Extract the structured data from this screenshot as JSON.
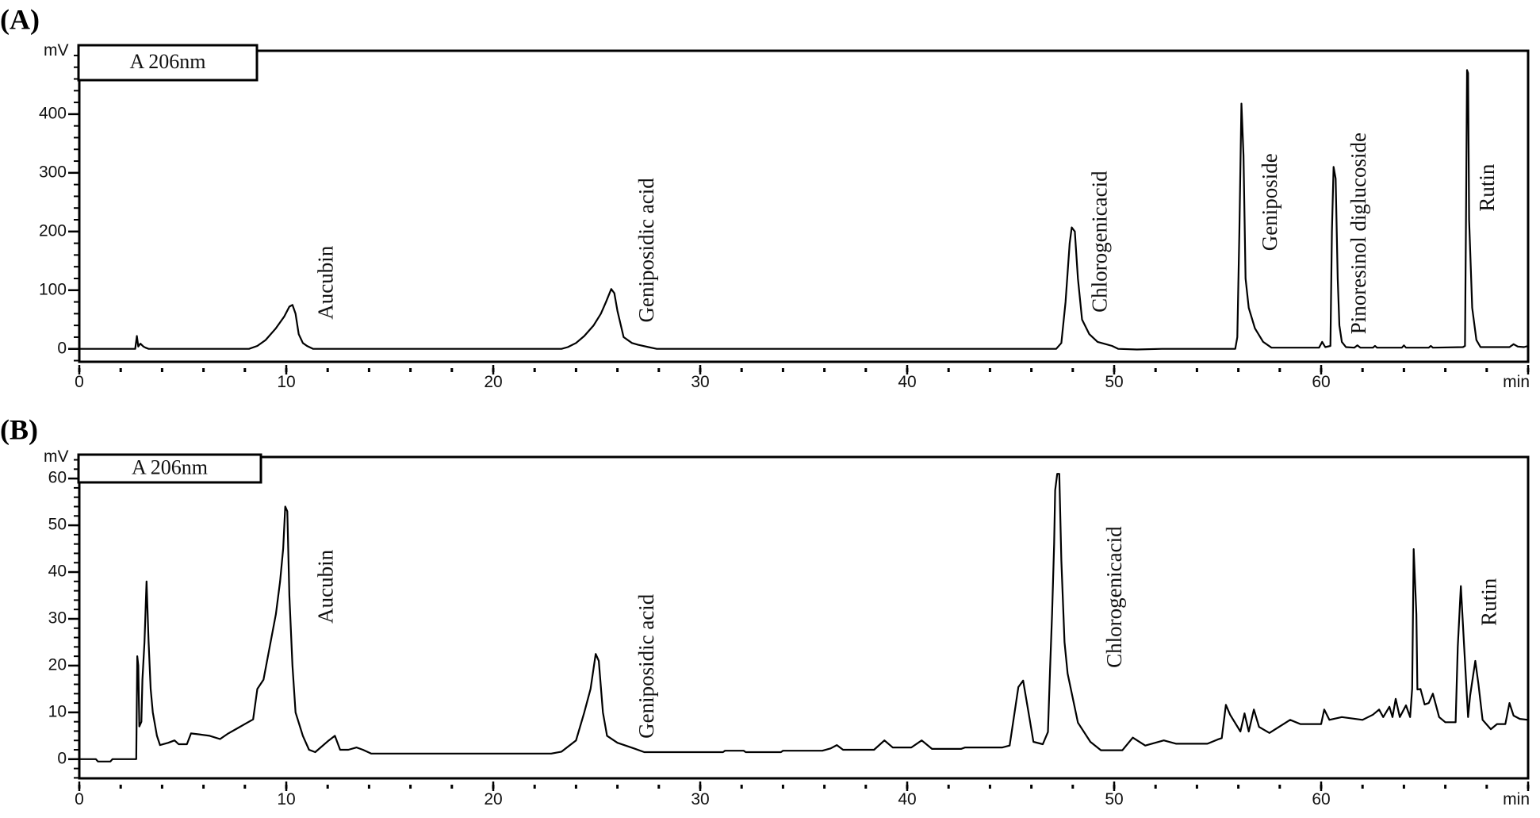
{
  "chart_data": [
    {
      "type": "line",
      "panel_label": "(A)",
      "legend": "A 206nm",
      "ylabel": "mV",
      "xlabel": "min",
      "xlim": [
        0,
        70
      ],
      "ylim": [
        -22,
        508
      ],
      "x_major_ticks": [
        0,
        10,
        20,
        30,
        40,
        50,
        60
      ],
      "x_tick_labels": [
        "0",
        "10",
        "20",
        "30",
        "40",
        "50",
        "60"
      ],
      "x_minor_step": 2,
      "y_major_ticks": [
        0,
        100,
        200,
        300,
        400
      ],
      "y_tick_labels": [
        "0",
        "100",
        "200",
        "300",
        "400"
      ],
      "y_minor_step": 20,
      "annotations": [
        {
          "text": "Aucubin",
          "t": 11.9,
          "mV": 50
        },
        {
          "text": "Geniposidic acid",
          "t": 27.4,
          "mV": 45
        },
        {
          "text": "Chlorogenicacid",
          "t": 49.3,
          "mV": 62
        },
        {
          "text": "Geniposide",
          "t": 57.5,
          "mV": 167
        },
        {
          "text": "Pinoresinol diglucoside",
          "t": 61.8,
          "mV": 25
        },
        {
          "text": "Rutin",
          "t": 68.0,
          "mV": 234
        }
      ],
      "points": [
        [
          0,
          0
        ],
        [
          2.7,
          0
        ],
        [
          2.78,
          22
        ],
        [
          2.85,
          4
        ],
        [
          2.95,
          9
        ],
        [
          3.1,
          4
        ],
        [
          3.2,
          2
        ],
        [
          3.35,
          0
        ],
        [
          8.2,
          0
        ],
        [
          8.6,
          5
        ],
        [
          9.0,
          15
        ],
        [
          9.5,
          35
        ],
        [
          9.9,
          55
        ],
        [
          10.15,
          72
        ],
        [
          10.3,
          75
        ],
        [
          10.45,
          60
        ],
        [
          10.6,
          25
        ],
        [
          10.8,
          10
        ],
        [
          11.0,
          5
        ],
        [
          11.3,
          0
        ],
        [
          23.3,
          0
        ],
        [
          23.6,
          3
        ],
        [
          24.0,
          10
        ],
        [
          24.4,
          22
        ],
        [
          24.85,
          40
        ],
        [
          25.2,
          60
        ],
        [
          25.45,
          80
        ],
        [
          25.7,
          102
        ],
        [
          25.85,
          95
        ],
        [
          26.0,
          65
        ],
        [
          26.3,
          20
        ],
        [
          26.7,
          10
        ],
        [
          27.0,
          7
        ],
        [
          27.5,
          3
        ],
        [
          27.9,
          0
        ],
        [
          47.2,
          0
        ],
        [
          47.45,
          10
        ],
        [
          47.65,
          80
        ],
        [
          47.85,
          180
        ],
        [
          47.95,
          207
        ],
        [
          48.1,
          200
        ],
        [
          48.25,
          120
        ],
        [
          48.45,
          50
        ],
        [
          48.8,
          25
        ],
        [
          49.2,
          12
        ],
        [
          49.6,
          8
        ],
        [
          49.9,
          5
        ],
        [
          50.2,
          0
        ],
        [
          51.1,
          -1
        ],
        [
          52.3,
          0
        ],
        [
          55.85,
          0
        ],
        [
          55.95,
          20
        ],
        [
          56.05,
          200
        ],
        [
          56.15,
          418
        ],
        [
          56.25,
          330
        ],
        [
          56.35,
          120
        ],
        [
          56.5,
          70
        ],
        [
          56.8,
          35
        ],
        [
          57.2,
          12
        ],
        [
          57.6,
          2
        ],
        [
          59.9,
          2
        ],
        [
          60.05,
          12
        ],
        [
          60.2,
          3
        ],
        [
          60.45,
          5
        ],
        [
          60.52,
          200
        ],
        [
          60.6,
          310
        ],
        [
          60.7,
          290
        ],
        [
          60.8,
          120
        ],
        [
          60.88,
          40
        ],
        [
          61.0,
          12
        ],
        [
          61.2,
          3
        ],
        [
          61.6,
          2
        ],
        [
          61.75,
          6
        ],
        [
          61.9,
          2
        ],
        [
          62.5,
          2
        ],
        [
          62.6,
          5
        ],
        [
          62.7,
          2
        ],
        [
          63.9,
          2
        ],
        [
          64.0,
          6
        ],
        [
          64.1,
          2
        ],
        [
          65.2,
          2
        ],
        [
          65.3,
          5
        ],
        [
          65.4,
          2
        ],
        [
          66.85,
          3
        ],
        [
          66.95,
          5
        ],
        [
          67.0,
          225
        ],
        [
          67.05,
          475
        ],
        [
          67.1,
          470
        ],
        [
          67.15,
          220
        ],
        [
          67.3,
          70
        ],
        [
          67.5,
          15
        ],
        [
          67.7,
          3
        ],
        [
          69.1,
          3
        ],
        [
          69.3,
          8
        ],
        [
          69.5,
          4
        ],
        [
          69.8,
          3
        ],
        [
          70.0,
          5
        ]
      ]
    },
    {
      "type": "line",
      "panel_label": "(B)",
      "legend": "A 206nm",
      "ylabel": "mV",
      "xlabel": "min",
      "xlim": [
        0,
        70
      ],
      "ylim": [
        -4.1,
        64.6
      ],
      "x_major_ticks": [
        0,
        10,
        20,
        30,
        40,
        50,
        60
      ],
      "x_tick_labels": [
        "0",
        "10",
        "20",
        "30",
        "40",
        "50",
        "60"
      ],
      "x_minor_step": 2,
      "y_major_ticks": [
        0,
        10,
        20,
        30,
        40,
        50,
        60
      ],
      "y_tick_labels": [
        "0",
        "10",
        "20",
        "30",
        "40",
        "50",
        "60"
      ],
      "y_minor_step": 2,
      "annotations": [
        {
          "text": "Aucubin",
          "t": 11.9,
          "mV": 29
        },
        {
          "text": "Geniposidic acid",
          "t": 27.4,
          "mV": 4.4
        },
        {
          "text": "Chlorogenicacid",
          "t": 50.0,
          "mV": 19.5
        },
        {
          "text": "Rutin",
          "t": 68.1,
          "mV": 28.5
        }
      ],
      "points": [
        [
          0,
          0
        ],
        [
          0.8,
          0
        ],
        [
          0.9,
          -0.5
        ],
        [
          1.5,
          -0.5
        ],
        [
          1.6,
          0
        ],
        [
          2.75,
          0
        ],
        [
          2.8,
          22
        ],
        [
          2.85,
          20
        ],
        [
          2.9,
          7
        ],
        [
          3.0,
          8
        ],
        [
          3.05,
          17
        ],
        [
          3.15,
          25
        ],
        [
          3.25,
          38
        ],
        [
          3.35,
          25
        ],
        [
          3.45,
          15
        ],
        [
          3.55,
          10
        ],
        [
          3.75,
          5
        ],
        [
          3.9,
          3
        ],
        [
          4.3,
          3.5
        ],
        [
          4.6,
          4
        ],
        [
          4.8,
          3.2
        ],
        [
          5.2,
          3.2
        ],
        [
          5.4,
          5.5
        ],
        [
          5.8,
          5.3
        ],
        [
          6.3,
          5
        ],
        [
          6.8,
          4.3
        ],
        [
          7.2,
          5.5
        ],
        [
          7.6,
          6.5
        ],
        [
          8.0,
          7.5
        ],
        [
          8.4,
          8.5
        ],
        [
          8.6,
          15
        ],
        [
          8.9,
          17
        ],
        [
          9.2,
          24
        ],
        [
          9.5,
          31
        ],
        [
          9.7,
          38
        ],
        [
          9.85,
          45
        ],
        [
          9.95,
          54
        ],
        [
          10.05,
          53
        ],
        [
          10.15,
          35
        ],
        [
          10.3,
          20
        ],
        [
          10.45,
          10
        ],
        [
          10.8,
          5
        ],
        [
          11.1,
          2
        ],
        [
          11.4,
          1.5
        ],
        [
          12.0,
          3.8
        ],
        [
          12.35,
          5
        ],
        [
          12.6,
          2
        ],
        [
          13.0,
          2
        ],
        [
          13.4,
          2.5
        ],
        [
          13.7,
          2
        ],
        [
          14.1,
          1.2
        ],
        [
          22.8,
          1.2
        ],
        [
          23.3,
          1.6
        ],
        [
          24.0,
          4
        ],
        [
          24.4,
          10
        ],
        [
          24.7,
          15
        ],
        [
          24.95,
          22.5
        ],
        [
          25.1,
          21
        ],
        [
          25.3,
          10
        ],
        [
          25.5,
          5
        ],
        [
          26.0,
          3.5
        ],
        [
          26.8,
          2.3
        ],
        [
          27.3,
          1.5
        ],
        [
          31.1,
          1.5
        ],
        [
          31.2,
          1.8
        ],
        [
          32.1,
          1.8
        ],
        [
          32.2,
          1.5
        ],
        [
          33.9,
          1.5
        ],
        [
          34.0,
          1.8
        ],
        [
          35.9,
          1.8
        ],
        [
          36.3,
          2.3
        ],
        [
          36.6,
          3
        ],
        [
          36.9,
          2
        ],
        [
          38.4,
          2
        ],
        [
          38.9,
          4
        ],
        [
          39.3,
          2.5
        ],
        [
          40.2,
          2.5
        ],
        [
          40.7,
          4
        ],
        [
          41.2,
          2.2
        ],
        [
          42.6,
          2.2
        ],
        [
          42.8,
          2.5
        ],
        [
          44.6,
          2.5
        ],
        [
          44.95,
          2.9
        ],
        [
          45.37,
          15.4
        ],
        [
          45.6,
          16.8
        ],
        [
          45.9,
          9
        ],
        [
          46.1,
          3.7
        ],
        [
          46.55,
          3.2
        ],
        [
          46.8,
          5.8
        ],
        [
          46.9,
          18.9
        ],
        [
          47.0,
          31
        ],
        [
          47.1,
          46
        ],
        [
          47.15,
          57.5
        ],
        [
          47.25,
          61
        ],
        [
          47.35,
          61
        ],
        [
          47.45,
          42.5
        ],
        [
          47.6,
          25
        ],
        [
          47.75,
          18.3
        ],
        [
          48.25,
          7.8
        ],
        [
          48.85,
          3.7
        ],
        [
          49.36,
          1.9
        ],
        [
          50.4,
          1.9
        ],
        [
          50.9,
          4.6
        ],
        [
          51.5,
          2.9
        ],
        [
          52.4,
          4
        ],
        [
          53.0,
          3.3
        ],
        [
          54.5,
          3.3
        ],
        [
          55.0,
          4.2
        ],
        [
          55.2,
          4.5
        ],
        [
          55.4,
          11.6
        ],
        [
          55.6,
          9.5
        ],
        [
          56.1,
          5.9
        ],
        [
          56.3,
          9.8
        ],
        [
          56.5,
          5.9
        ],
        [
          56.75,
          10.6
        ],
        [
          57.0,
          6.9
        ],
        [
          57.5,
          5.6
        ],
        [
          58.5,
          8.4
        ],
        [
          59.0,
          7.5
        ],
        [
          60.0,
          7.5
        ],
        [
          60.15,
          10.6
        ],
        [
          60.4,
          8.4
        ],
        [
          61.0,
          9
        ],
        [
          62.0,
          8.4
        ],
        [
          62.5,
          9.5
        ],
        [
          62.8,
          10.6
        ],
        [
          63.0,
          9
        ],
        [
          63.3,
          11.2
        ],
        [
          63.45,
          9
        ],
        [
          63.6,
          12.9
        ],
        [
          63.8,
          9
        ],
        [
          64.1,
          11.5
        ],
        [
          64.3,
          9
        ],
        [
          64.4,
          15.1
        ],
        [
          64.47,
          44.9
        ],
        [
          64.6,
          31
        ],
        [
          64.65,
          14.9
        ],
        [
          64.8,
          15
        ],
        [
          65.0,
          11.7
        ],
        [
          65.2,
          12
        ],
        [
          65.4,
          14
        ],
        [
          65.7,
          9
        ],
        [
          66.0,
          7.9
        ],
        [
          66.5,
          7.9
        ],
        [
          66.6,
          24
        ],
        [
          66.75,
          37
        ],
        [
          66.9,
          24.8
        ],
        [
          67.1,
          9
        ],
        [
          67.2,
          13.6
        ],
        [
          67.45,
          21
        ],
        [
          67.6,
          16
        ],
        [
          67.8,
          8.4
        ],
        [
          68.2,
          6.4
        ],
        [
          68.5,
          7.5
        ],
        [
          68.9,
          7.5
        ],
        [
          69.1,
          12
        ],
        [
          69.3,
          9.3
        ],
        [
          69.6,
          8.6
        ],
        [
          70.0,
          8.4
        ]
      ]
    }
  ]
}
